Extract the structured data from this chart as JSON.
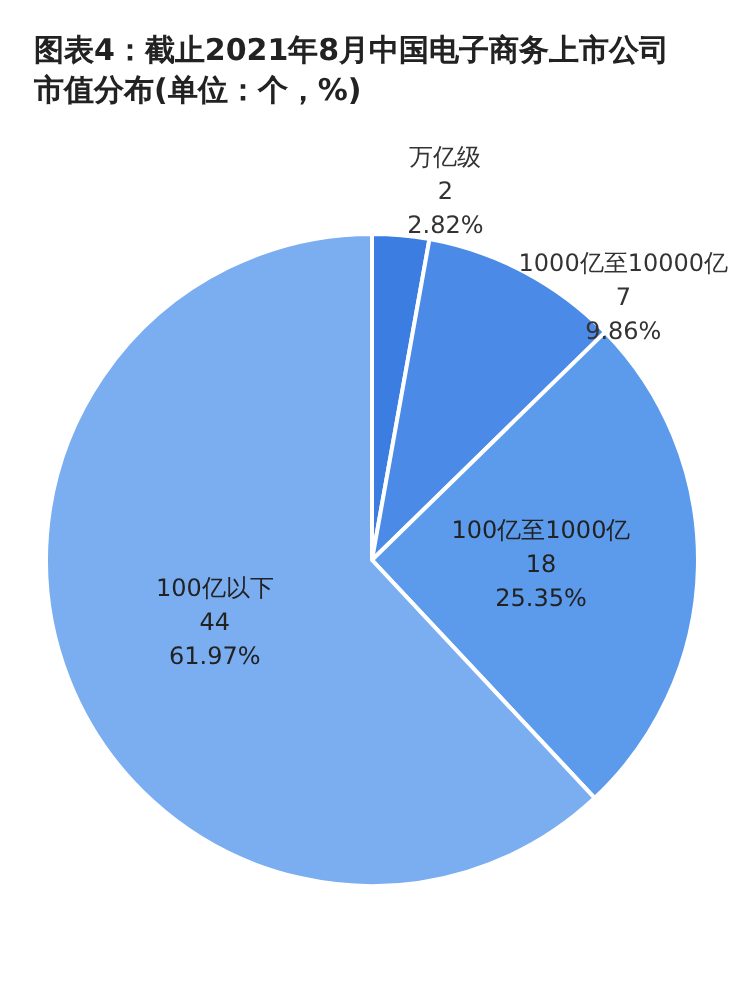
{
  "chart_data": {
    "type": "pie",
    "title": "图表4：截止2021年8月中国电子商务上市公司市值分布(单位：个，%)",
    "categories": [
      "万亿级",
      "1000亿至10000亿",
      "100亿至1000亿",
      "100亿以下"
    ],
    "values": [
      2.82,
      9.86,
      25.35,
      61.97
    ],
    "colors": [
      "#3b7de0",
      "#4b8ae6",
      "#5c9bec",
      "#7aaef0"
    ],
    "value_labels": [
      "2\n2.82%",
      "7\n9.86%",
      "18\n25.35%",
      "44\n61.97%"
    ]
  }
}
